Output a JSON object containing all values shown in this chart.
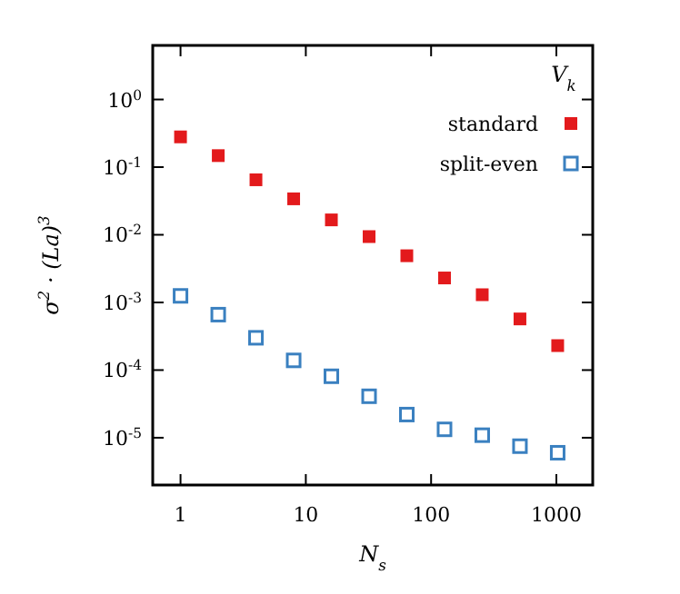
{
  "chart_data": {
    "type": "scatter",
    "xlabel": "N$_{s}$",
    "ylabel": "σ$^{2}$ · (La)$^{3}$",
    "legend_title": "V$_{k}$",
    "log": "xy",
    "marker": "square",
    "legend": "top right",
    "grid": false,
    "x": [
      1,
      2,
      4,
      8,
      16,
      32,
      64,
      128,
      256,
      512,
      1024
    ],
    "xlim": [
      0.6,
      1950
    ],
    "xticks": [
      1,
      10,
      100,
      1000
    ],
    "ylim": [
      2e-06,
      6.3
    ],
    "yticks": [
      {
        "value": 1,
        "label": "10$^{0}$"
      },
      {
        "value": 0.1,
        "label": "10$^{-1}$"
      },
      {
        "value": 0.01,
        "label": "10$^{-2}$"
      },
      {
        "value": 0.001,
        "label": "10$^{-3}$"
      },
      {
        "value": 0.0001,
        "label": "10$^{-4}$"
      },
      {
        "value": 1e-05,
        "label": "10$^{-5}$"
      }
    ],
    "series": [
      {
        "name": "standard",
        "color": "#e31a1c",
        "values": [
          0.28,
          0.148,
          0.065,
          0.034,
          0.0166,
          0.0094,
          0.0049,
          0.0023,
          0.0013,
          0.00057,
          0.00023
        ]
      },
      {
        "name": "split-even",
        "color": "#3a80c0",
        "values": [
          0.00125,
          0.00066,
          0.0003,
          0.000139,
          8.1e-05,
          4.1e-05,
          2.2e-05,
          1.33e-05,
          1.09e-05,
          7.5e-06,
          6e-06
        ]
      }
    ]
  }
}
